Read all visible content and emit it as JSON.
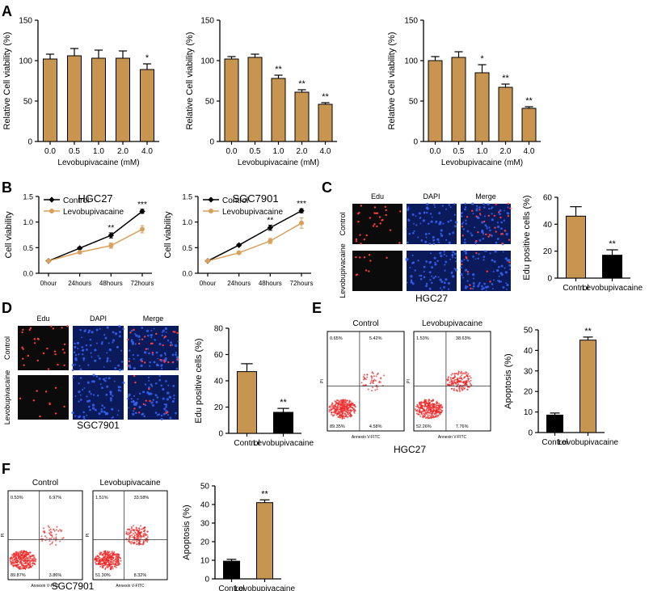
{
  "panel_labels": {
    "A": "A",
    "B": "B",
    "C": "C",
    "D": "D",
    "E": "E",
    "F": "F"
  },
  "colors": {
    "bar": "#C7954F",
    "black": "#000000",
    "orange_line": "#D9A05B",
    "dot": "#ff3a3a"
  },
  "chart_data": [
    {
      "id": "A1",
      "type": "bar",
      "categories": [
        "0.0",
        "0.5",
        "1.0",
        "2.0",
        "4.0"
      ],
      "values": [
        102,
        106,
        103,
        103,
        89
      ],
      "errors": [
        6,
        9,
        10,
        9,
        7
      ],
      "annotations": [
        "",
        "",
        "",
        "",
        "*"
      ],
      "ylabel": "Relative Cell viability (%)",
      "xlabel": "Levobupivacaine (mM)",
      "ylim": [
        0,
        150
      ],
      "yticks": [
        0,
        50,
        100,
        150
      ]
    },
    {
      "id": "A2",
      "type": "bar",
      "categories": [
        "0.0",
        "0.5",
        "1.0",
        "2.0",
        "4.0"
      ],
      "values": [
        102,
        104,
        78,
        61,
        46
      ],
      "errors": [
        3,
        4,
        4,
        3,
        2
      ],
      "annotations": [
        "",
        "",
        "**",
        "**",
        "**"
      ],
      "ylabel": "Relative Cell viability (%)",
      "xlabel": "Levobupivacaine (mM)",
      "ylim": [
        0,
        150
      ],
      "yticks": [
        0,
        50,
        100,
        150
      ]
    },
    {
      "id": "A3",
      "type": "bar",
      "categories": [
        "0.0",
        "0.5",
        "1.0",
        "2.0",
        "4.0"
      ],
      "values": [
        100,
        104,
        85,
        67,
        41
      ],
      "errors": [
        5,
        7,
        10,
        4,
        2
      ],
      "annotations": [
        "",
        "",
        "*",
        "**",
        "**"
      ],
      "ylabel": "Relative Cell viability (%)",
      "xlabel": "Levobupivacaine (mM)",
      "ylim": [
        0,
        150
      ],
      "yticks": [
        0,
        50,
        100,
        150
      ]
    },
    {
      "id": "B1",
      "type": "line",
      "title": "HGC27",
      "ylabel": "Cell viability",
      "categories": [
        "0hour",
        "24hours",
        "48hours",
        "72hours"
      ],
      "ylim": [
        0,
        1.5
      ],
      "yticks": [
        "0.0",
        "0.5",
        "1.0",
        "1.5"
      ],
      "series": [
        {
          "name": "Control",
          "values": [
            0.24,
            0.49,
            0.74,
            1.21
          ],
          "errors": [
            0.01,
            0.02,
            0.05,
            0.04
          ]
        },
        {
          "name": "Levobupivacaine",
          "values": [
            0.24,
            0.41,
            0.54,
            0.86
          ],
          "errors": [
            0.01,
            0.02,
            0.05,
            0.07
          ]
        }
      ],
      "annotations": [
        "",
        "",
        "**",
        "***"
      ]
    },
    {
      "id": "B2",
      "type": "line",
      "title": "SGC7901",
      "ylabel": "Cell viability",
      "categories": [
        "0hour",
        "24hours",
        "48hours",
        "72hours"
      ],
      "ylim": [
        0,
        1.5
      ],
      "yticks": [
        "0.0",
        "0.5",
        "1.0",
        "1.5"
      ],
      "series": [
        {
          "name": "Control",
          "values": [
            0.24,
            0.55,
            0.89,
            1.22
          ],
          "errors": [
            0.01,
            0.02,
            0.05,
            0.04
          ]
        },
        {
          "name": "Levobupivacaine",
          "values": [
            0.24,
            0.4,
            0.63,
            0.98
          ],
          "errors": [
            0.01,
            0.02,
            0.05,
            0.1
          ]
        }
      ],
      "annotations": [
        "",
        "",
        "**",
        "***"
      ]
    },
    {
      "id": "C",
      "type": "bar",
      "categories": [
        "Control",
        "Levobupivacaine"
      ],
      "values": [
        46,
        17
      ],
      "errors": [
        7,
        4
      ],
      "annotations": [
        "",
        "**"
      ],
      "ylabel": "Edu positive cells (%)",
      "ylim": [
        0,
        60
      ],
      "yticks": [
        0,
        20,
        40,
        60
      ]
    },
    {
      "id": "D",
      "type": "bar",
      "categories": [
        "Control",
        "Levobupivacaine"
      ],
      "values": [
        47,
        16
      ],
      "errors": [
        6,
        3
      ],
      "annotations": [
        "",
        "**"
      ],
      "ylabel": "Edu positive cells (%)",
      "ylim": [
        0,
        80
      ],
      "yticks": [
        0,
        20,
        40,
        60,
        80
      ]
    },
    {
      "id": "E",
      "type": "bar",
      "categories": [
        "Control",
        "Levobupivacaine"
      ],
      "values": [
        8.5,
        45
      ],
      "errors": [
        1,
        1.5
      ],
      "annotations": [
        "",
        "**"
      ],
      "ylabel": "Apoptosis (%)",
      "ylim": [
        0,
        50
      ],
      "yticks": [
        0,
        10,
        20,
        30,
        40,
        50
      ]
    },
    {
      "id": "F",
      "type": "bar",
      "categories": [
        "Control",
        "Levobupivacaine"
      ],
      "values": [
        9.5,
        41
      ],
      "errors": [
        1,
        1.5
      ],
      "annotations": [
        "",
        "**"
      ],
      "ylabel": "Apoptosis (%)",
      "ylim": [
        0,
        50
      ],
      "yticks": [
        0,
        10,
        20,
        30,
        40,
        50
      ]
    }
  ],
  "micrographs": {
    "C": {
      "columns": [
        "Edu",
        "DAPI",
        "Merge"
      ],
      "rows": [
        "Control",
        "Levobupivacaine"
      ],
      "caption": "HGC27"
    },
    "D": {
      "columns": [
        "Edu",
        "DAPI",
        "Merge"
      ],
      "rows": [
        "Control",
        "Levobupivacaine"
      ],
      "caption": "SGC7901"
    }
  },
  "flow": {
    "axis_x": "Annexin V-FITC",
    "axis_y": "PI",
    "E": {
      "caption": "HGC27",
      "plots": [
        {
          "title": "Control",
          "q1": "0.65%",
          "q2": "5.42%",
          "q3": "89.35%",
          "q4": "4.58%"
        },
        {
          "title": "Levobupivacaine",
          "q1": "1.53%",
          "q2": "38.63%",
          "q3": "52.26%",
          "q4": "7.76%"
        }
      ]
    },
    "F": {
      "caption": "SGC7901",
      "plots": [
        {
          "title": "Control",
          "q1": "0.53%",
          "q2": "6.97%",
          "q3": "89.87%",
          "q4": "3.86%"
        },
        {
          "title": "Levobupivacaine",
          "q1": "1.51%",
          "q2": "33.58%",
          "q3": "51.30%",
          "q4": "8.32%"
        }
      ]
    }
  }
}
